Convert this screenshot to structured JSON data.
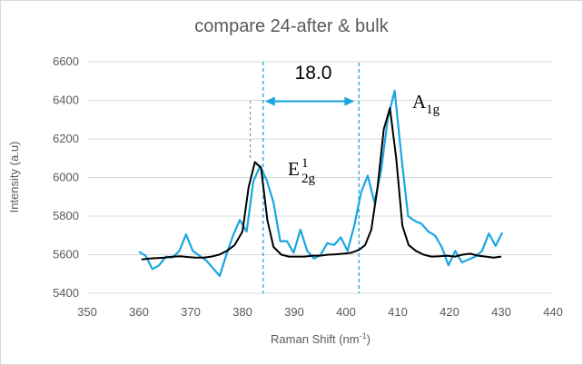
{
  "chart_data": {
    "type": "line",
    "title": "compare 24-after & bulk",
    "xlabel": "Raman Shift (nm",
    "xlabel_sup": "-1",
    "xlabel_end": ")",
    "ylabel": "Intensity (a.u)",
    "xlim": [
      350,
      440
    ],
    "ylim": [
      5400,
      6600
    ],
    "xticks": [
      350,
      360,
      370,
      380,
      390,
      400,
      410,
      420,
      430,
      440
    ],
    "yticks": [
      5400,
      5600,
      5800,
      6000,
      6200,
      6400,
      6600
    ],
    "grid": "horizontal",
    "legend": "none",
    "series": [
      {
        "color": "#1aa7e0",
        "x": [
          360,
          361.3,
          362.6,
          363.9,
          365.2,
          366.5,
          367.8,
          369.1,
          370.4,
          371.7,
          373,
          374.3,
          375.6,
          376.9,
          378.2,
          379.5,
          380.8,
          382.1,
          383.4,
          384.7,
          386,
          387.3,
          388.6,
          389.9,
          391.2,
          392.5,
          393.8,
          395.1,
          396.4,
          397.7,
          399,
          400.3,
          401.6,
          402.9,
          404.2,
          405.5,
          406.8,
          408.1,
          409.4,
          410.7,
          412,
          413.3,
          414.6,
          415.9,
          417.2,
          418.5,
          419.8,
          421.1,
          422.4,
          423.7,
          425,
          426.3,
          427.6,
          428.9,
          430.2
        ],
        "values": [
          5615,
          5595,
          5525,
          5545,
          5590,
          5585,
          5620,
          5705,
          5620,
          5595,
          5570,
          5530,
          5490,
          5600,
          5700,
          5780,
          5720,
          5980,
          6060,
          5985,
          5870,
          5670,
          5670,
          5610,
          5730,
          5620,
          5580,
          5600,
          5660,
          5650,
          5690,
          5620,
          5750,
          5920,
          6010,
          5870,
          6040,
          6310,
          6450,
          6110,
          5800,
          5775,
          5760,
          5720,
          5700,
          5640,
          5545,
          5620,
          5560,
          5575,
          5590,
          5620,
          5710,
          5645,
          5715
        ]
      },
      {
        "color": "#000000",
        "x": [
          360.5,
          362,
          363.5,
          365,
          366.5,
          368,
          369.5,
          371,
          372.5,
          374,
          375.5,
          377,
          378.5,
          380,
          381.2,
          382.4,
          383.6,
          384.8,
          386,
          387.5,
          389,
          390.5,
          392,
          393.5,
          395,
          396.5,
          398,
          399.5,
          401,
          402.5,
          403.7,
          404.9,
          406.1,
          407.3,
          408.5,
          409.7,
          410.9,
          412.1,
          413.5,
          415,
          416.5,
          418,
          419.5,
          421,
          422.5,
          424,
          425.5,
          427,
          428.5,
          430
        ],
        "values": [
          5575,
          5580,
          5582,
          5585,
          5590,
          5592,
          5588,
          5585,
          5585,
          5590,
          5600,
          5620,
          5650,
          5720,
          5950,
          6080,
          6050,
          5780,
          5640,
          5600,
          5590,
          5590,
          5590,
          5595,
          5595,
          5600,
          5602,
          5605,
          5610,
          5625,
          5650,
          5730,
          5950,
          6250,
          6360,
          6100,
          5750,
          5650,
          5620,
          5600,
          5590,
          5592,
          5595,
          5590,
          5600,
          5605,
          5595,
          5590,
          5585,
          5590
        ]
      }
    ],
    "annotations": {
      "lines": [
        384,
        402.5,
        381.5
      ],
      "arrow_from": 384,
      "arrow_to": 402,
      "arrow_y": 6395,
      "distance": "18.0",
      "label_a_main": "A",
      "label_a_sub": "1g",
      "label_e_main": "E",
      "label_e_sup": "1",
      "label_e_sub": "2g"
    }
  }
}
